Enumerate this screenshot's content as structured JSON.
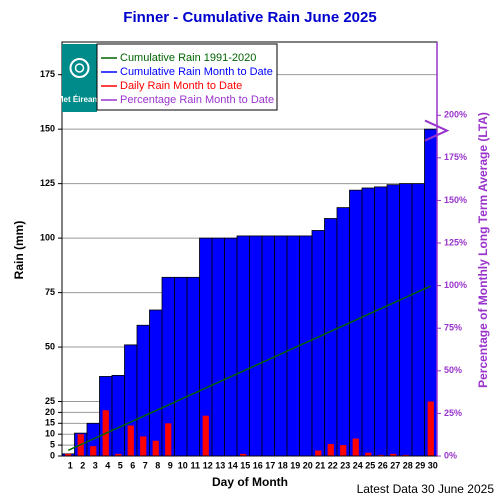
{
  "chart_data": {
    "type": "bar",
    "title": "Finner - Cumulative Rain June   2025",
    "x_label": "Day of Month",
    "y_label": "Rain (mm)",
    "y2_label": "Percentage  of Monthly Long Term Average (LTA)",
    "footer": "Latest Data 30 June 2025",
    "logo_text": "Met Éireann",
    "categories": [
      1,
      2,
      3,
      4,
      5,
      6,
      7,
      8,
      9,
      10,
      11,
      12,
      13,
      14,
      15,
      16,
      17,
      18,
      19,
      20,
      21,
      22,
      23,
      24,
      25,
      26,
      27,
      28,
      29,
      30
    ],
    "series": [
      {
        "name": "Cumulative Rain Month to Date",
        "color": "#0000ff",
        "type": "bar",
        "values": [
          1,
          10.5,
          15,
          36.5,
          37,
          51,
          60,
          67,
          82,
          82,
          82,
          100,
          100,
          100,
          101,
          101,
          101,
          101,
          101,
          101,
          103.5,
          109,
          114,
          122,
          123,
          123.5,
          124.5,
          125,
          125,
          150
        ]
      },
      {
        "name": "Daily Rain Month to Date",
        "color": "#ff0000",
        "type": "bar",
        "values": [
          1,
          10,
          4.5,
          21,
          1,
          14,
          9,
          7,
          15,
          0,
          0,
          18.5,
          0,
          0.2,
          1,
          0.2,
          0,
          0,
          0,
          0,
          2.5,
          5.5,
          5,
          8,
          1.5,
          0.5,
          1,
          0.5,
          0.2,
          25
        ]
      },
      {
        "name": "Cumulative Rain 1991-2020",
        "color": "#006400",
        "type": "line",
        "values": [
          2.6,
          5.2,
          7.8,
          10.4,
          13,
          15.6,
          18.2,
          20.8,
          23.4,
          26,
          28.6,
          31.2,
          33.8,
          36.4,
          39,
          41.6,
          44.2,
          46.8,
          49.4,
          52,
          54.6,
          57.2,
          59.8,
          62.4,
          65,
          67.6,
          70.2,
          72.8,
          75.4,
          78
        ]
      },
      {
        "name": "Percentage Rain Month to Date",
        "color": "#9933cc",
        "type": "marker",
        "axis": "y2",
        "values": [
          null,
          null,
          null,
          null,
          null,
          null,
          null,
          null,
          null,
          null,
          null,
          null,
          null,
          null,
          null,
          null,
          null,
          null,
          null,
          null,
          null,
          null,
          null,
          null,
          null,
          null,
          null,
          null,
          null,
          191
        ]
      }
    ],
    "legend_order": [
      2,
      0,
      1,
      3
    ],
    "ylim": [
      0,
      190
    ],
    "yticks": [
      0,
      5,
      10,
      15,
      20,
      25,
      50,
      75,
      100,
      125,
      150,
      175
    ],
    "y2lim": [
      0,
      243
    ],
    "y2ticks": [
      {
        "value": 0,
        "label": "0%"
      },
      {
        "value": 25,
        "label": "25%"
      },
      {
        "value": 50,
        "label": "50%"
      },
      {
        "value": 75,
        "label": "75%"
      },
      {
        "value": 100,
        "label": "100%"
      },
      {
        "value": 125,
        "label": "125%"
      },
      {
        "value": 150,
        "label": "150%"
      },
      {
        "value": 175,
        "label": "175%"
      },
      {
        "value": 200,
        "label": "200%"
      }
    ],
    "grid": true
  }
}
